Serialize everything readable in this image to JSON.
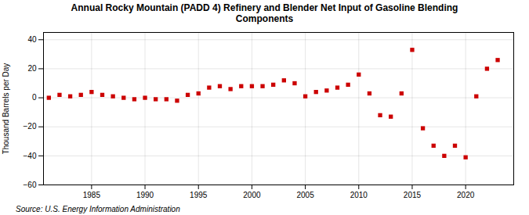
{
  "chart_data": {
    "type": "scatter",
    "title": "Annual Rocky Mountain (PADD 4) Refinery and Blender Net Input of Gasoline Blending\nComponents",
    "ylabel": "Thousand Barrels per Day",
    "source": "Source: U.S. Energy Information Administration",
    "color": "#cc0000",
    "marker": "square",
    "grid": true,
    "xlim": [
      1980.5,
      2024.5
    ],
    "xticks": [
      1985,
      1990,
      1995,
      2000,
      2005,
      2010,
      2015,
      2020
    ],
    "ylim": [
      -60,
      45
    ],
    "yticks": [
      -60,
      -40,
      -20,
      0,
      20,
      40
    ],
    "x": [
      1981,
      1982,
      1983,
      1984,
      1985,
      1986,
      1987,
      1988,
      1989,
      1990,
      1991,
      1992,
      1993,
      1994,
      1995,
      1996,
      1997,
      1998,
      1999,
      2000,
      2001,
      2002,
      2003,
      2004,
      2005,
      2006,
      2007,
      2008,
      2009,
      2010,
      2011,
      2012,
      2013,
      2014,
      2015,
      2016,
      2017,
      2018,
      2019,
      2020,
      2021,
      2022,
      2023
    ],
    "values": [
      0,
      2,
      1,
      2,
      4,
      2,
      1,
      0,
      -1,
      0,
      -1,
      -1,
      -2,
      2,
      3,
      7,
      8,
      6,
      8,
      8,
      8,
      9,
      12,
      10,
      1,
      4,
      5,
      7,
      9,
      16,
      3,
      -12,
      -13,
      3,
      33,
      -21,
      -33,
      -40,
      -33,
      -41,
      1,
      20,
      26
    ]
  }
}
